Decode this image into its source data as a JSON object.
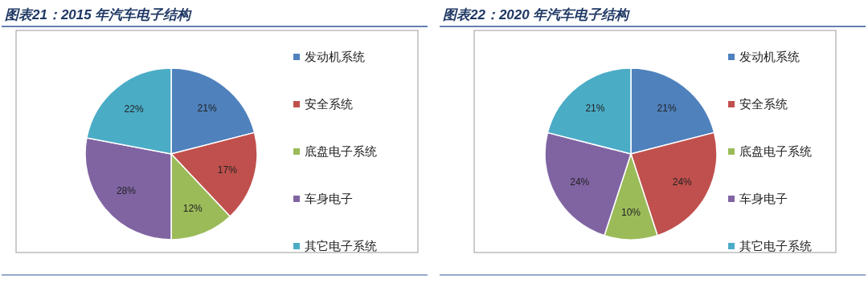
{
  "chart_data": [
    {
      "type": "pie",
      "title": "图表21：2015 年汽车电子结构",
      "categories": [
        "发动机系统",
        "安全系统",
        "底盘电子系统",
        "车身电子",
        "其它电子系统"
      ],
      "values": [
        21,
        17,
        12,
        28,
        22
      ],
      "colors": [
        "#4f81bd",
        "#c0504d",
        "#9bbb59",
        "#8064a2",
        "#4bacc6"
      ],
      "value_labels": [
        "21%",
        "17%",
        "12%",
        "28%",
        "22%"
      ],
      "legend": "right"
    },
    {
      "type": "pie",
      "title": "图表22：2020 年汽车电子结构",
      "categories": [
        "发动机系统",
        "安全系统",
        "底盘电子系统",
        "车身电子",
        "其它电子系统"
      ],
      "values": [
        21,
        24,
        10,
        24,
        21
      ],
      "colors": [
        "#4f81bd",
        "#c0504d",
        "#9bbb59",
        "#8064a2",
        "#4bacc6"
      ],
      "value_labels": [
        "21%",
        "24%",
        "10%",
        "24%",
        "21%"
      ],
      "legend": "right"
    }
  ]
}
